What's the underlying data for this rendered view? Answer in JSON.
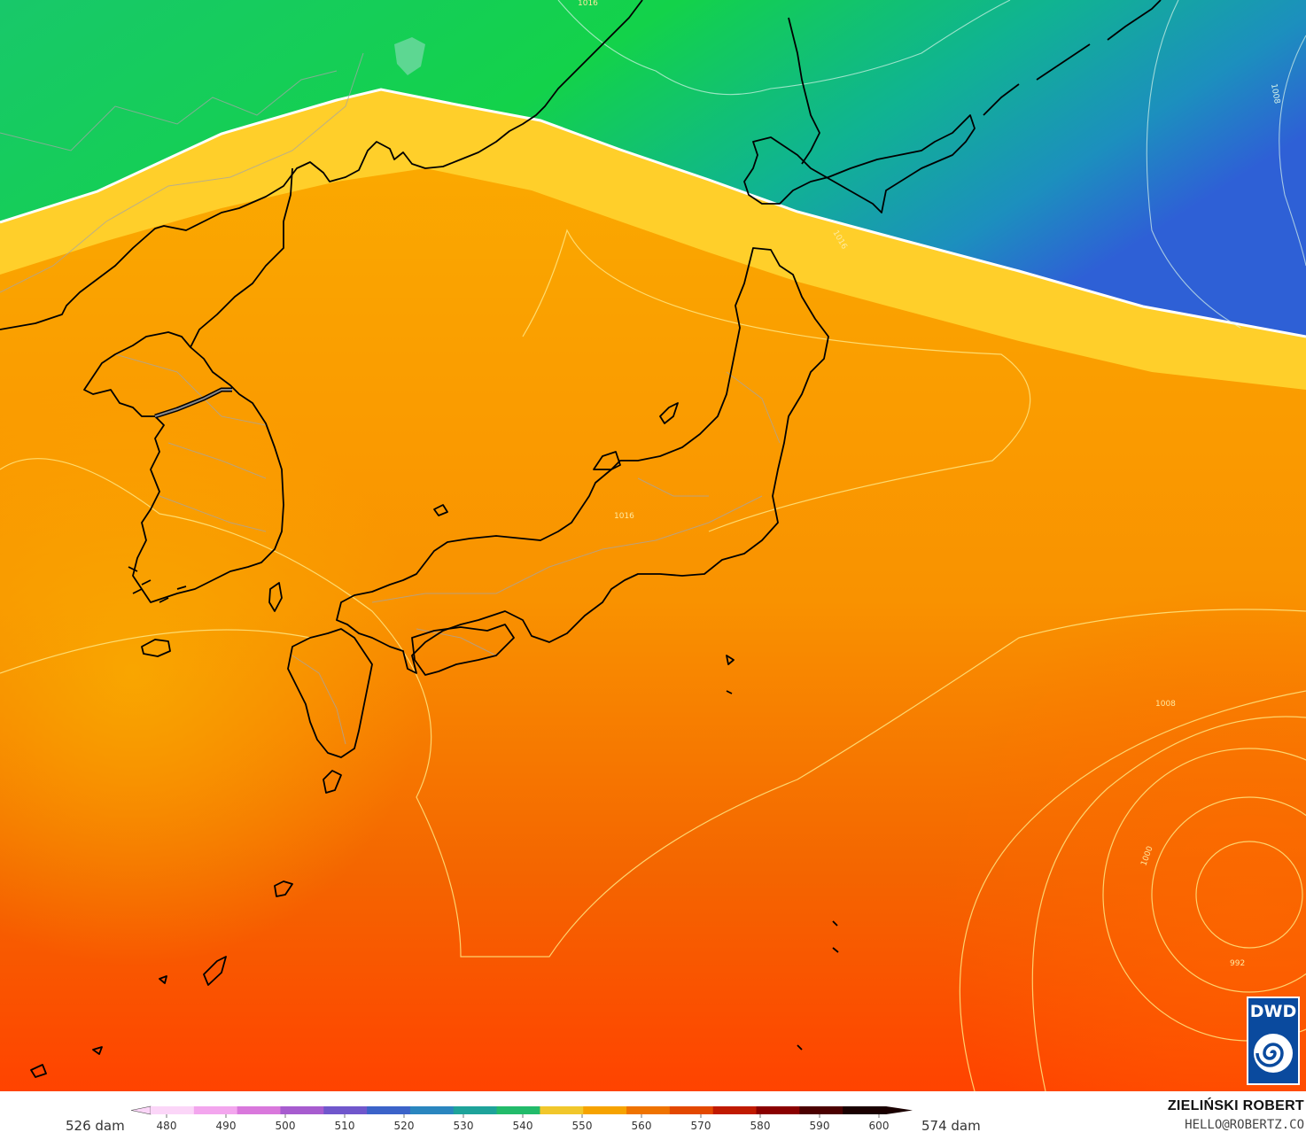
{
  "legend": {
    "left_label": "526 dam",
    "right_label": "574 dam",
    "ticks": [
      "480",
      "490",
      "500",
      "510",
      "520",
      "530",
      "540",
      "550",
      "560",
      "570",
      "580",
      "590",
      "600"
    ],
    "colors": [
      "#fbd6f8",
      "#f3a6ee",
      "#d978dc",
      "#a75ccf",
      "#7057cc",
      "#3b63c9",
      "#2a86bf",
      "#1ea39a",
      "#22bb6a",
      "#f1c72b",
      "#f6a300",
      "#ef7300",
      "#e34800",
      "#c01a00",
      "#8a0000",
      "#4b0000",
      "#1a0000"
    ]
  },
  "credit": {
    "name": "ZIELIŃSKI ROBERT",
    "email": "HELLO@ROBERTZ.CO"
  },
  "logo": {
    "text": "DWD"
  },
  "isobar_labels": [
    "1016",
    "1008",
    "1016",
    "1016",
    "1008",
    "1000",
    "992"
  ],
  "colors": {
    "green_high": "#1ba36f",
    "green": "#17cc4a",
    "yellow": "#ffd32a",
    "orange": "#f8a100",
    "dark_orange": "#f06a00",
    "red_orange": "#ff4a00",
    "blue": "#2e65d1"
  }
}
